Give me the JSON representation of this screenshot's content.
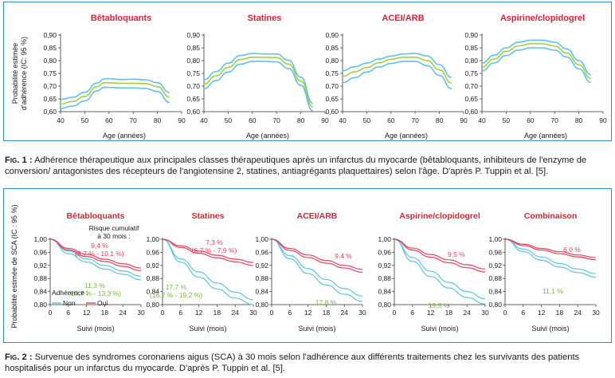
{
  "figure1": {
    "y_axis_label": [
      "Probabilité estimée",
      "d'adhérence (IC: 95 %)"
    ],
    "x_axis_label": "Age (années)",
    "caption_prefix": "Fig. 1 :",
    "caption_text": "Adhérence thérapeutique aux principales classes thérapeutiques après un infarctus du myocarde (bêtabloquants, inhibiteurs de l'enzyme de conversion/ antagonistes des récepteurs de l'angiotensine 2, statines, antiagrégants plaquettaires) selon l'âge. D'après P. Tuppin et al. [5]."
  },
  "figure2": {
    "y_axis_label": "Probabilité estimée de SCA (IC : 95 %)",
    "x_axis_label": "Suivi (mois)",
    "legend_title": "Adhérence :",
    "legend_non": "Non",
    "legend_oui": "Oui",
    "risk_label": [
      "Risque cumulatif",
      "à 30 mois :"
    ],
    "caption_prefix": "Fig. 2 :",
    "caption_text": "Survenue des syndromes coronariens aigus (SCA) à 30 mois selon l'adhérence aux différents traitements chez les survivants des patients hospitalisés pour un infarctus du myocarde. D'après P. Tuppin et al. [5]."
  },
  "colors": {
    "panel_border": "#2e8fc4",
    "title_red": "#d6243c",
    "band_blue": "#5bc4e6",
    "center_green": "#a9cc3c",
    "oui_red": "#e3405c",
    "annot_green": "#7ab640"
  },
  "chart_data": [
    {
      "type": "line",
      "title": "Bêtabloquants",
      "xlabel": "Age (années)",
      "ylabel": "Probabilité estimée d'adhérence (IC: 95 %)",
      "xlim": [
        40,
        90
      ],
      "ylim": [
        0.6,
        0.9
      ],
      "xticks": [
        40,
        50,
        60,
        70,
        80,
        90
      ],
      "yticks": [
        "0,60",
        "0,65",
        "0,70",
        "0,75",
        "0,80",
        "0,85",
        "0,90"
      ],
      "x": [
        40,
        45,
        50,
        55,
        58,
        60,
        65,
        70,
        75,
        80,
        85
      ],
      "series": [
        {
          "values": [
            0.648,
            0.656,
            0.676,
            0.712,
            0.728,
            0.729,
            0.726,
            0.727,
            0.725,
            0.713,
            0.675
          ]
        },
        {
          "values": [
            0.63,
            0.64,
            0.66,
            0.698,
            0.713,
            0.713,
            0.711,
            0.711,
            0.71,
            0.698,
            0.657
          ]
        },
        {
          "values": [
            0.612,
            0.622,
            0.642,
            0.681,
            0.695,
            0.695,
            0.693,
            0.693,
            0.691,
            0.679,
            0.636
          ]
        }
      ]
    },
    {
      "type": "line",
      "title": "Statines",
      "xlabel": "Age (années)",
      "ylim": [
        0.6,
        0.9
      ],
      "xlim": [
        40,
        90
      ],
      "xticks": [
        40,
        50,
        60,
        70,
        80,
        90
      ],
      "yticks": [
        "0,60",
        "0,65",
        "0,70",
        "0,75",
        "0,80",
        "0,85",
        "0,90"
      ],
      "x": [
        40,
        45,
        50,
        55,
        60,
        65,
        70,
        75,
        80,
        85
      ],
      "series": [
        {
          "values": [
            0.725,
            0.757,
            0.79,
            0.82,
            0.828,
            0.826,
            0.826,
            0.801,
            0.735,
            0.632
          ]
        },
        {
          "values": [
            0.708,
            0.74,
            0.773,
            0.804,
            0.813,
            0.813,
            0.812,
            0.786,
            0.72,
            0.618
          ]
        },
        {
          "values": [
            0.69,
            0.722,
            0.755,
            0.786,
            0.797,
            0.797,
            0.795,
            0.769,
            0.703,
            0.603
          ]
        }
      ]
    },
    {
      "type": "line",
      "title": "ACEI/ARB",
      "xlabel": "Age (années)",
      "ylim": [
        0.6,
        0.9
      ],
      "xlim": [
        40,
        90
      ],
      "xticks": [
        40,
        50,
        60,
        70,
        80,
        90
      ],
      "yticks": [
        "0,60",
        "0,65",
        "0,70",
        "0,75",
        "0,80",
        "0,85",
        "0,90"
      ],
      "x": [
        40,
        45,
        50,
        55,
        60,
        65,
        70,
        75,
        80,
        85
      ],
      "series": [
        {
          "values": [
            0.76,
            0.776,
            0.79,
            0.806,
            0.818,
            0.826,
            0.828,
            0.818,
            0.784,
            0.734
          ]
        },
        {
          "values": [
            0.738,
            0.756,
            0.773,
            0.791,
            0.805,
            0.813,
            0.813,
            0.8,
            0.764,
            0.712
          ]
        },
        {
          "values": [
            0.713,
            0.733,
            0.755,
            0.775,
            0.789,
            0.797,
            0.797,
            0.78,
            0.742,
            0.69
          ]
        }
      ]
    },
    {
      "type": "line",
      "title": "Aspirine/clopidogrel",
      "xlabel": "Age (années)",
      "ylim": [
        0.6,
        0.9
      ],
      "xlim": [
        40,
        90
      ],
      "xticks": [
        40,
        50,
        60,
        70,
        80,
        90
      ],
      "yticks": [
        "0,60",
        "0,65",
        "0,70",
        "0,75",
        "0,80",
        "0,85",
        "0,90"
      ],
      "x": [
        40,
        45,
        50,
        55,
        60,
        65,
        70,
        75,
        80,
        85
      ],
      "series": [
        {
          "values": [
            0.79,
            0.821,
            0.85,
            0.872,
            0.88,
            0.88,
            0.872,
            0.846,
            0.8,
            0.745
          ]
        },
        {
          "values": [
            0.775,
            0.806,
            0.836,
            0.857,
            0.866,
            0.866,
            0.857,
            0.83,
            0.784,
            0.73
          ]
        },
        {
          "values": [
            0.76,
            0.791,
            0.82,
            0.841,
            0.85,
            0.85,
            0.841,
            0.814,
            0.768,
            0.714
          ]
        }
      ]
    },
    {
      "type": "line",
      "title": "Bêtabloquants",
      "xlabel": "Suivi (mois)",
      "ylabel": "Probabilité estimée de SCA (IC : 95 %)",
      "xlim": [
        0,
        30
      ],
      "ylim": [
        0.8,
        1.0
      ],
      "xticks": [
        0,
        6,
        12,
        18,
        24,
        30
      ],
      "yticks": [
        "0,80",
        "0,84",
        "0,88",
        "0,92",
        "0,96",
        "1,00"
      ],
      "x": [
        0,
        6,
        12,
        18,
        24,
        30
      ],
      "series": [
        {
          "name": "Non",
          "values": [
            1.0,
            0.964,
            0.94,
            0.92,
            0.903,
            0.887
          ]
        },
        {
          "name": "Non",
          "values": [
            1.0,
            0.956,
            0.93,
            0.909,
            0.893,
            0.876
          ]
        },
        {
          "name": "Oui",
          "values": [
            1.0,
            0.972,
            0.954,
            0.939,
            0.925,
            0.912
          ]
        },
        {
          "name": "Oui",
          "values": [
            1.0,
            0.967,
            0.947,
            0.932,
            0.917,
            0.904
          ]
        }
      ],
      "annotations": [
        "9,4 %",
        "(8,7 % - 10,1 %)",
        "11,3 %",
        "(10,7 % - 13,3 %)"
      ]
    },
    {
      "type": "line",
      "title": "Statines",
      "xlabel": "Suivi (mois)",
      "xlim": [
        0,
        30
      ],
      "ylim": [
        0.8,
        1.0
      ],
      "xticks": [
        0,
        6,
        12,
        18,
        24,
        30
      ],
      "yticks": [
        "0,80",
        "0,84",
        "0,88",
        "0,92",
        "0,96",
        "1,00"
      ],
      "x": [
        0,
        6,
        12,
        18,
        24,
        30
      ],
      "series": [
        {
          "name": "Non",
          "values": [
            1.0,
            0.94,
            0.9,
            0.866,
            0.838,
            0.815
          ]
        },
        {
          "name": "Non",
          "values": [
            1.0,
            0.93,
            0.884,
            0.848,
            0.82,
            0.8
          ]
        },
        {
          "name": "Oui",
          "values": [
            1.0,
            0.98,
            0.964,
            0.951,
            0.939,
            0.929
          ]
        },
        {
          "name": "Oui",
          "values": [
            1.0,
            0.975,
            0.957,
            0.943,
            0.931,
            0.92
          ]
        }
      ],
      "annotations": [
        "7,3 %",
        "(6,7 % - 7,9 %)",
        "17,7 %",
        "(16,2 % - 19,2 %)"
      ]
    },
    {
      "type": "line",
      "title": "ACEI/ARB",
      "xlabel": "Suivi (mois)",
      "xlim": [
        0,
        30
      ],
      "ylim": [
        0.8,
        1.0
      ],
      "xticks": [
        0,
        6,
        12,
        18,
        24,
        30
      ],
      "yticks": [
        "0,80",
        "0,84",
        "0,88",
        "0,92",
        "0,96",
        "1,00"
      ],
      "x": [
        0,
        6,
        12,
        18,
        24,
        30
      ],
      "series": [
        {
          "name": "Non",
          "values": [
            1.0,
            0.95,
            0.91,
            0.877,
            0.849,
            0.826
          ]
        },
        {
          "name": "Non",
          "values": [
            1.0,
            0.94,
            0.895,
            0.86,
            0.832,
            0.81
          ]
        },
        {
          "name": "Oui",
          "values": [
            1.0,
            0.972,
            0.952,
            0.935,
            0.92,
            0.908
          ]
        },
        {
          "name": "Oui",
          "values": [
            1.0,
            0.966,
            0.944,
            0.927,
            0.912,
            0.899
          ]
        }
      ],
      "annotations": [
        "9.4 %",
        "17,8 %"
      ]
    },
    {
      "type": "line",
      "title": "Aspirine/clopidogrel",
      "xlabel": "Suivi (mois)",
      "xlim": [
        0,
        30
      ],
      "ylim": [
        0.8,
        1.0
      ],
      "xticks": [
        0,
        6,
        12,
        18,
        24,
        30
      ],
      "yticks": [
        "0,80",
        "0,84",
        "0,88",
        "0,92",
        "0,96",
        "1,00"
      ],
      "x": [
        0,
        6,
        12,
        18,
        24,
        30
      ],
      "series": [
        {
          "name": "Non",
          "values": [
            1.0,
            0.944,
            0.902,
            0.868,
            0.84,
            0.818
          ]
        },
        {
          "name": "Non",
          "values": [
            1.0,
            0.932,
            0.886,
            0.851,
            0.822,
            0.802
          ]
        },
        {
          "name": "Oui",
          "values": [
            1.0,
            0.973,
            0.953,
            0.937,
            0.922,
            0.909
          ]
        },
        {
          "name": "Oui",
          "values": [
            1.0,
            0.967,
            0.945,
            0.928,
            0.913,
            0.9
          ]
        }
      ],
      "annotations": [
        "9,5 %",
        "19,5 %"
      ]
    },
    {
      "type": "line",
      "title": "Combinaison",
      "xlabel": "Suivi (mois)",
      "xlim": [
        0,
        30
      ],
      "ylim": [
        0.8,
        1.0
      ],
      "xticks": [
        0,
        6,
        12,
        18,
        24,
        30
      ],
      "yticks": [
        "0,80",
        "0,84",
        "0,88",
        "0,92",
        "0,96",
        "1,00"
      ],
      "x": [
        0,
        6,
        12,
        18,
        24,
        30
      ],
      "series": [
        {
          "name": "Non",
          "values": [
            1.0,
            0.97,
            0.946,
            0.926,
            0.909,
            0.895
          ]
        },
        {
          "name": "Non",
          "values": [
            1.0,
            0.962,
            0.936,
            0.915,
            0.898,
            0.884
          ]
        },
        {
          "name": "Oui",
          "values": [
            1.0,
            0.985,
            0.972,
            0.962,
            0.952,
            0.944
          ]
        },
        {
          "name": "Oui",
          "values": [
            1.0,
            0.981,
            0.967,
            0.956,
            0.946,
            0.937
          ]
        }
      ],
      "annotations": [
        "6,0 %",
        "11,1 %"
      ]
    }
  ]
}
